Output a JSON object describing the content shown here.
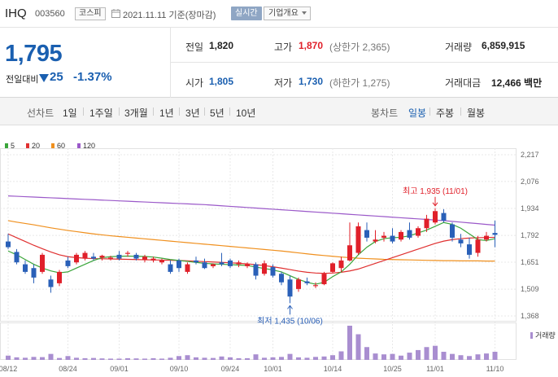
{
  "header": {
    "stock_name": "IHQ",
    "stock_code": "003560",
    "market_badge": "코스피",
    "date_text": "2021.11.11 기준(장마감)",
    "realtime_label": "실시간",
    "company_info_label": "기업개요"
  },
  "quote": {
    "current_price": "1,795",
    "change_label": "전일대비",
    "change_value": "25",
    "change_percent": "-1.37%",
    "prev_close_label": "전일",
    "prev_close": "1,820",
    "high_label": "고가",
    "high": "1,870",
    "upper_limit": "(상한가 2,365)",
    "volume_label": "거래량",
    "volume": "6,859,915",
    "open_label": "시가",
    "open": "1,805",
    "low_label": "저가",
    "low": "1,730",
    "lower_limit": "(하한가 1,275)",
    "amount_label": "거래대금",
    "amount": "12,466 백만"
  },
  "period_bar": {
    "chart_label": "선차트",
    "periods": [
      "1일",
      "1주일",
      "3개월",
      "1년",
      "3년",
      "5년",
      "10년"
    ],
    "candle_label": "봉차트",
    "candle_periods": [
      "일봉",
      "주봉",
      "월봉"
    ],
    "candle_active": 0
  },
  "colors": {
    "up": "#e0202a",
    "down": "#2a60b8",
    "ma5": "#3aa53a",
    "ma20": "#e03030",
    "ma60": "#f0901e",
    "ma120": "#9b59c9",
    "volume": "#a98ed0"
  },
  "chart_data": {
    "type": "candlestick",
    "legend": [
      "5",
      "20",
      "60",
      "120"
    ],
    "y_ticks": [
      2217,
      2076,
      1934,
      1792,
      1651,
      1509,
      1368
    ],
    "y_tick_labels": [
      "2,217",
      "2,076",
      "1,934",
      "1,792",
      "1,651",
      "1,509",
      "1,368"
    ],
    "ylim": [
      1368,
      2217
    ],
    "x_labels": [
      {
        "label": "08/12",
        "index": 0
      },
      {
        "label": "08/24",
        "index": 7
      },
      {
        "label": "09/01",
        "index": 13
      },
      {
        "label": "09/10",
        "index": 20
      },
      {
        "label": "09/24",
        "index": 26
      },
      {
        "label": "10/01",
        "index": 31
      },
      {
        "label": "10/14",
        "index": 38
      },
      {
        "label": "10/25",
        "index": 45
      },
      {
        "label": "11/01",
        "index": 50
      },
      {
        "label": "11/10",
        "index": 57
      }
    ],
    "candles": [
      {
        "o": 1760,
        "h": 1800,
        "l": 1720,
        "c": 1730
      },
      {
        "o": 1705,
        "h": 1720,
        "l": 1640,
        "c": 1650
      },
      {
        "o": 1640,
        "h": 1660,
        "l": 1590,
        "c": 1600
      },
      {
        "o": 1620,
        "h": 1640,
        "l": 1540,
        "c": 1570
      },
      {
        "o": 1600,
        "h": 1700,
        "l": 1590,
        "c": 1690
      },
      {
        "o": 1560,
        "h": 1580,
        "l": 1490,
        "c": 1520
      },
      {
        "o": 1540,
        "h": 1610,
        "l": 1525,
        "c": 1600
      },
      {
        "o": 1660,
        "h": 1680,
        "l": 1620,
        "c": 1630
      },
      {
        "o": 1650,
        "h": 1700,
        "l": 1640,
        "c": 1690
      },
      {
        "o": 1670,
        "h": 1710,
        "l": 1660,
        "c": 1700
      },
      {
        "o": 1680,
        "h": 1700,
        "l": 1660,
        "c": 1670
      },
      {
        "o": 1675,
        "h": 1690,
        "l": 1660,
        "c": 1685
      },
      {
        "o": 1670,
        "h": 1685,
        "l": 1660,
        "c": 1675
      },
      {
        "o": 1690,
        "h": 1710,
        "l": 1660,
        "c": 1670
      },
      {
        "o": 1695,
        "h": 1710,
        "l": 1680,
        "c": 1700
      },
      {
        "o": 1690,
        "h": 1700,
        "l": 1660,
        "c": 1670
      },
      {
        "o": 1665,
        "h": 1690,
        "l": 1650,
        "c": 1680
      },
      {
        "o": 1660,
        "h": 1680,
        "l": 1650,
        "c": 1670
      },
      {
        "o": 1650,
        "h": 1670,
        "l": 1640,
        "c": 1660
      },
      {
        "o": 1640,
        "h": 1660,
        "l": 1590,
        "c": 1600
      },
      {
        "o": 1660,
        "h": 1670,
        "l": 1600,
        "c": 1620
      },
      {
        "o": 1600,
        "h": 1650,
        "l": 1590,
        "c": 1640
      },
      {
        "o": 1660,
        "h": 1680,
        "l": 1640,
        "c": 1650
      },
      {
        "o": 1650,
        "h": 1670,
        "l": 1615,
        "c": 1620
      },
      {
        "o": 1630,
        "h": 1645,
        "l": 1620,
        "c": 1640
      },
      {
        "o": 1650,
        "h": 1700,
        "l": 1630,
        "c": 1640
      },
      {
        "o": 1660,
        "h": 1670,
        "l": 1620,
        "c": 1630
      },
      {
        "o": 1640,
        "h": 1660,
        "l": 1625,
        "c": 1650
      },
      {
        "o": 1630,
        "h": 1650,
        "l": 1620,
        "c": 1640
      },
      {
        "o": 1640,
        "h": 1650,
        "l": 1560,
        "c": 1580
      },
      {
        "o": 1590,
        "h": 1660,
        "l": 1580,
        "c": 1645
      },
      {
        "o": 1625,
        "h": 1640,
        "l": 1570,
        "c": 1580
      },
      {
        "o": 1590,
        "h": 1600,
        "l": 1530,
        "c": 1545
      },
      {
        "o": 1560,
        "h": 1580,
        "l": 1435,
        "c": 1470
      },
      {
        "o": 1510,
        "h": 1570,
        "l": 1495,
        "c": 1560
      },
      {
        "o": 1550,
        "h": 1570,
        "l": 1530,
        "c": 1540
      },
      {
        "o": 1525,
        "h": 1545,
        "l": 1515,
        "c": 1530
      },
      {
        "o": 1535,
        "h": 1600,
        "l": 1530,
        "c": 1590
      },
      {
        "o": 1600,
        "h": 1650,
        "l": 1595,
        "c": 1645
      },
      {
        "o": 1620,
        "h": 1680,
        "l": 1600,
        "c": 1660
      },
      {
        "o": 1660,
        "h": 1860,
        "l": 1655,
        "c": 1740
      },
      {
        "o": 1700,
        "h": 1860,
        "l": 1690,
        "c": 1840
      },
      {
        "o": 1820,
        "h": 1860,
        "l": 1760,
        "c": 1780
      },
      {
        "o": 1760,
        "h": 1820,
        "l": 1750,
        "c": 1770
      },
      {
        "o": 1780,
        "h": 1810,
        "l": 1760,
        "c": 1790
      },
      {
        "o": 1790,
        "h": 1830,
        "l": 1750,
        "c": 1760
      },
      {
        "o": 1770,
        "h": 1820,
        "l": 1760,
        "c": 1810
      },
      {
        "o": 1820,
        "h": 1860,
        "l": 1770,
        "c": 1780
      },
      {
        "o": 1790,
        "h": 1840,
        "l": 1780,
        "c": 1830
      },
      {
        "o": 1830,
        "h": 1900,
        "l": 1810,
        "c": 1880
      },
      {
        "o": 1860,
        "h": 1935,
        "l": 1850,
        "c": 1920
      },
      {
        "o": 1910,
        "h": 1930,
        "l": 1860,
        "c": 1870
      },
      {
        "o": 1850,
        "h": 1860,
        "l": 1760,
        "c": 1780
      },
      {
        "o": 1770,
        "h": 1800,
        "l": 1730,
        "c": 1750
      },
      {
        "o": 1745,
        "h": 1780,
        "l": 1670,
        "c": 1690
      },
      {
        "o": 1700,
        "h": 1790,
        "l": 1680,
        "c": 1770
      },
      {
        "o": 1770,
        "h": 1810,
        "l": 1760,
        "c": 1790
      },
      {
        "o": 1805,
        "h": 1870,
        "l": 1730,
        "c": 1795
      }
    ],
    "volumes": [
      20,
      12,
      10,
      14,
      13,
      28,
      9,
      18,
      10,
      8,
      9,
      7,
      6,
      6,
      8,
      7,
      6,
      8,
      6,
      10,
      18,
      22,
      12,
      10,
      9,
      16,
      12,
      8,
      8,
      26,
      10,
      12,
      14,
      28,
      12,
      10,
      14,
      16,
      22,
      40,
      160,
      120,
      60,
      30,
      26,
      28,
      20,
      34,
      46,
      60,
      66,
      38,
      28,
      22,
      18,
      26,
      30,
      38
    ],
    "ma5": [
      1710,
      1690,
      1665,
      1640,
      1620,
      1605,
      1595,
      1600,
      1620,
      1640,
      1660,
      1675,
      1680,
      1682,
      1683,
      1682,
      1681,
      1678,
      1672,
      1665,
      1660,
      1655,
      1650,
      1645,
      1642,
      1640,
      1638,
      1636,
      1634,
      1625,
      1618,
      1610,
      1600,
      1580,
      1560,
      1545,
      1535,
      1545,
      1575,
      1600,
      1640,
      1690,
      1730,
      1760,
      1775,
      1780,
      1782,
      1790,
      1805,
      1820,
      1840,
      1860,
      1850,
      1830,
      1800,
      1770,
      1765,
      1775
    ],
    "ma20": [
      1800,
      1780,
      1760,
      1740,
      1722,
      1705,
      1690,
      1680,
      1675,
      1672,
      1670,
      1669,
      1668,
      1667,
      1666,
      1665,
      1664,
      1663,
      1662,
      1661,
      1660,
      1658,
      1656,
      1654,
      1652,
      1650,
      1648,
      1645,
      1642,
      1638,
      1633,
      1627,
      1620,
      1612,
      1604,
      1598,
      1594,
      1592,
      1594,
      1598,
      1605,
      1615,
      1630,
      1645,
      1660,
      1675,
      1690,
      1705,
      1720,
      1735,
      1750,
      1762,
      1770,
      1775,
      1778,
      1780,
      1781,
      1782
    ],
    "ma60": [
      1870,
      1862,
      1855,
      1848,
      1840,
      1832,
      1825,
      1818,
      1812,
      1806,
      1800,
      1795,
      1790,
      1786,
      1782,
      1778,
      1774,
      1770,
      1766,
      1762,
      1758,
      1754,
      1750,
      1746,
      1742,
      1738,
      1734,
      1730,
      1726,
      1722,
      1718,
      1714,
      1710,
      1705,
      1700,
      1695,
      1690,
      1686,
      1682,
      1678,
      1675,
      1672,
      1670,
      1668,
      1666,
      1665,
      1664,
      1663,
      1662,
      1661,
      1660,
      1659,
      1659,
      1658,
      1658,
      1658,
      1657,
      1657
    ],
    "ma120": [
      2000,
      1998,
      1996,
      1994,
      1992,
      1990,
      1988,
      1986,
      1984,
      1982,
      1980,
      1978,
      1976,
      1974,
      1972,
      1970,
      1968,
      1966,
      1964,
      1962,
      1960,
      1958,
      1956,
      1954,
      1951,
      1948,
      1945,
      1942,
      1939,
      1936,
      1933,
      1930,
      1927,
      1924,
      1921,
      1918,
      1915,
      1912,
      1909,
      1906,
      1903,
      1900,
      1897,
      1894,
      1891,
      1888,
      1885,
      1882,
      1879,
      1876,
      1873,
      1870,
      1866,
      1862,
      1858,
      1854,
      1850,
      1846
    ],
    "annotations": {
      "high": {
        "label": "최고 1,935 (11/01)",
        "index": 50,
        "value": 1935
      },
      "low": {
        "label": "최저 1,435 (10/06)",
        "index": 33,
        "value": 1435
      }
    },
    "volume_label": "거래량"
  }
}
